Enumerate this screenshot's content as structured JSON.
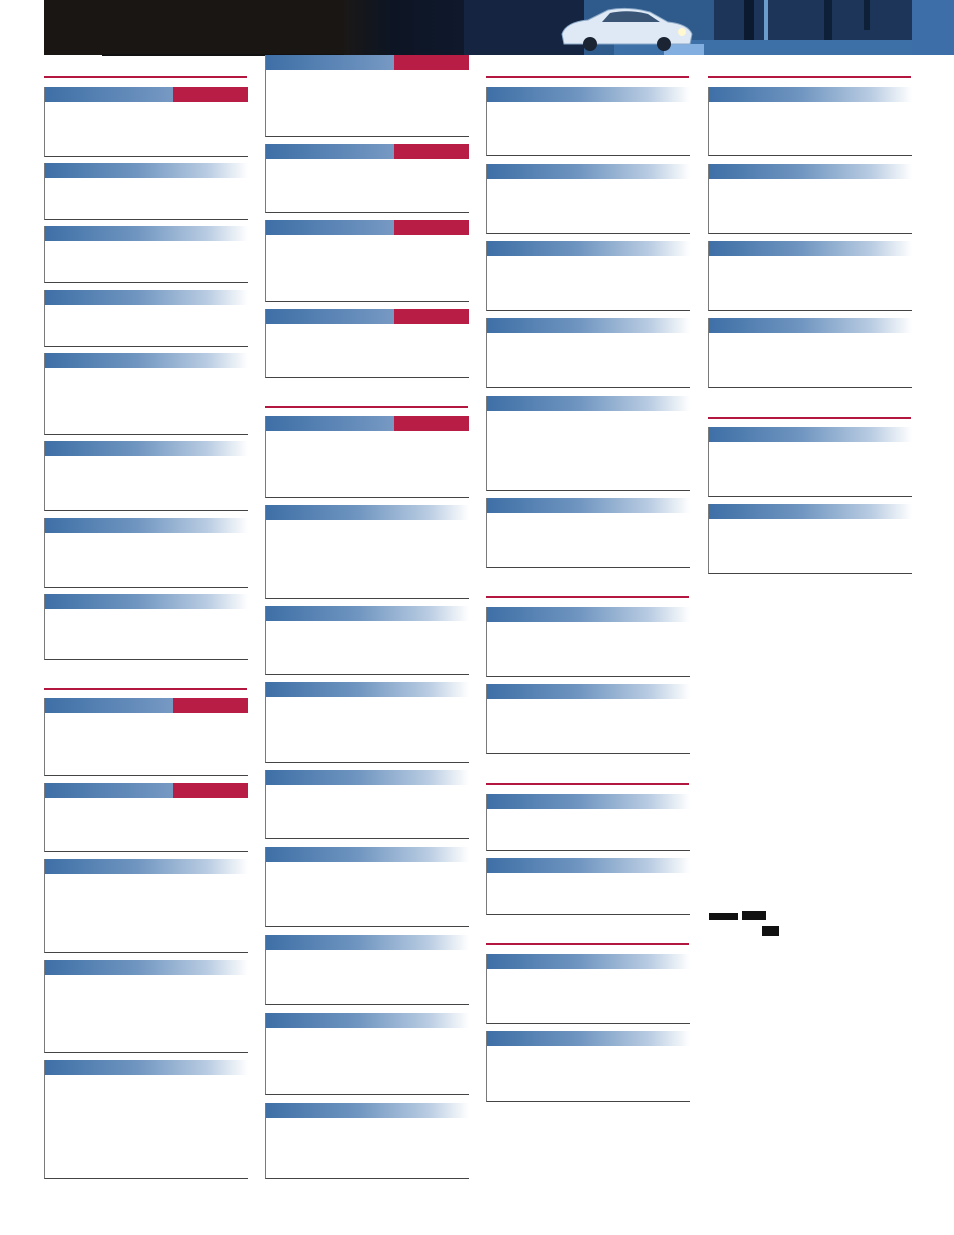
{
  "colors": {
    "accent_red": "#b81d45",
    "bar_blue": "#3e6fa6",
    "rule_red": "#b3163f",
    "banner_dark": "#1a1613",
    "corner_blue": "#3d6ea7"
  },
  "banner": {
    "image": "night-street-car-photo"
  },
  "logos": [
    "dolby-digital-logo",
    "dolby-surround-logo",
    "dts-logo"
  ],
  "columns": [
    {
      "sections": [
        {
          "cards": [
            {
              "tag": true
            },
            {
              "tag": false
            },
            {
              "tag": false
            },
            {
              "tag": false
            },
            {
              "tag": false
            },
            {
              "tag": false
            },
            {
              "tag": false
            },
            {
              "tag": false
            }
          ]
        },
        {
          "cards": [
            {
              "tag": true
            },
            {
              "tag": true
            },
            {
              "tag": false
            },
            {
              "tag": false
            },
            {
              "tag": false
            }
          ]
        }
      ]
    },
    {
      "sections": [
        {
          "cards": [
            {
              "tag": true
            },
            {
              "tag": true
            },
            {
              "tag": true
            },
            {
              "tag": true
            }
          ]
        },
        {
          "cards": [
            {
              "tag": true
            },
            {
              "tag": false
            },
            {
              "tag": false
            },
            {
              "tag": false
            },
            {
              "tag": false
            },
            {
              "tag": false
            },
            {
              "tag": false
            },
            {
              "tag": false
            },
            {
              "tag": false
            }
          ]
        }
      ]
    },
    {
      "sections": [
        {
          "cards": [
            {
              "tag": false
            },
            {
              "tag": false
            },
            {
              "tag": false
            },
            {
              "tag": false
            },
            {
              "tag": false
            },
            {
              "tag": false
            }
          ]
        },
        {
          "cards": [
            {
              "tag": false
            },
            {
              "tag": false
            }
          ]
        },
        {
          "cards": [
            {
              "tag": false
            },
            {
              "tag": false
            }
          ]
        },
        {
          "cards": [
            {
              "tag": false
            },
            {
              "tag": false
            }
          ]
        }
      ]
    },
    {
      "sections": [
        {
          "cards": [
            {
              "tag": false
            },
            {
              "tag": false
            },
            {
              "tag": false
            },
            {
              "tag": false
            }
          ]
        },
        {
          "cards": [
            {
              "tag": false
            },
            {
              "tag": false
            }
          ]
        }
      ]
    }
  ]
}
